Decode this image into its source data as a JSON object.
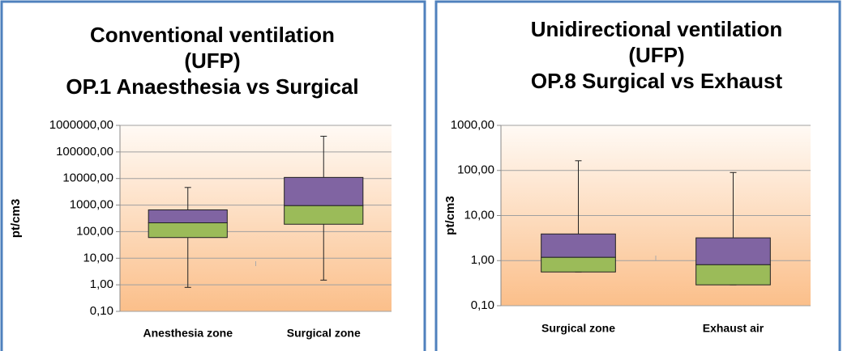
{
  "chart_data": [
    {
      "type": "box",
      "title": [
        "Conventional ventilation",
        "(UFP)",
        "OP.1 Anaesthesia vs Surgical"
      ],
      "ylabel": "pt/cm3",
      "categories": [
        "Anesthesia zone",
        "Surgical zone"
      ],
      "min": [
        0.8,
        1.5
      ],
      "q1": [
        60,
        190
      ],
      "median": [
        215,
        950
      ],
      "q3": [
        660,
        11000
      ],
      "max": [
        4600,
        390000
      ],
      "lower_color": "#9bbb59",
      "upper_color": "#8064a2",
      "log_scale": true,
      "grid": true,
      "ylim": [
        0.1,
        1000000
      ],
      "yticks": [
        {
          "value": 0.1,
          "label": "0,10"
        },
        {
          "value": 1,
          "label": "1,00"
        },
        {
          "value": 10,
          "label": "10,00"
        },
        {
          "value": 100,
          "label": "100,00"
        },
        {
          "value": 1000,
          "label": "1000,00"
        },
        {
          "value": 10000,
          "label": "10000,00"
        },
        {
          "value": 100000,
          "label": "100000,00"
        },
        {
          "value": 1000000,
          "label": "1000000,00"
        }
      ]
    },
    {
      "type": "box",
      "title": [
        "Unidirectional ventilation",
        "(UFP)",
        "OP.8 Surgical vs Exhaust"
      ],
      "ylabel": "pt/cm3",
      "categories": [
        "Surgical zone",
        "Exhaust air"
      ],
      "min": [
        0.56,
        0.29
      ],
      "q1": [
        0.56,
        0.29
      ],
      "median": [
        1.18,
        0.81
      ],
      "q3": [
        3.9,
        3.2
      ],
      "max": [
        164,
        90
      ],
      "lower_color": "#9bbb59",
      "upper_color": "#8064a2",
      "log_scale": true,
      "grid": true,
      "ylim": [
        0.1,
        1000
      ],
      "yticks": [
        {
          "value": 0.1,
          "label": "0,10"
        },
        {
          "value": 1,
          "label": "1,00"
        },
        {
          "value": 10,
          "label": "10,00"
        },
        {
          "value": 100,
          "label": "100,00"
        },
        {
          "value": 1000,
          "label": "1000,00"
        }
      ]
    }
  ]
}
